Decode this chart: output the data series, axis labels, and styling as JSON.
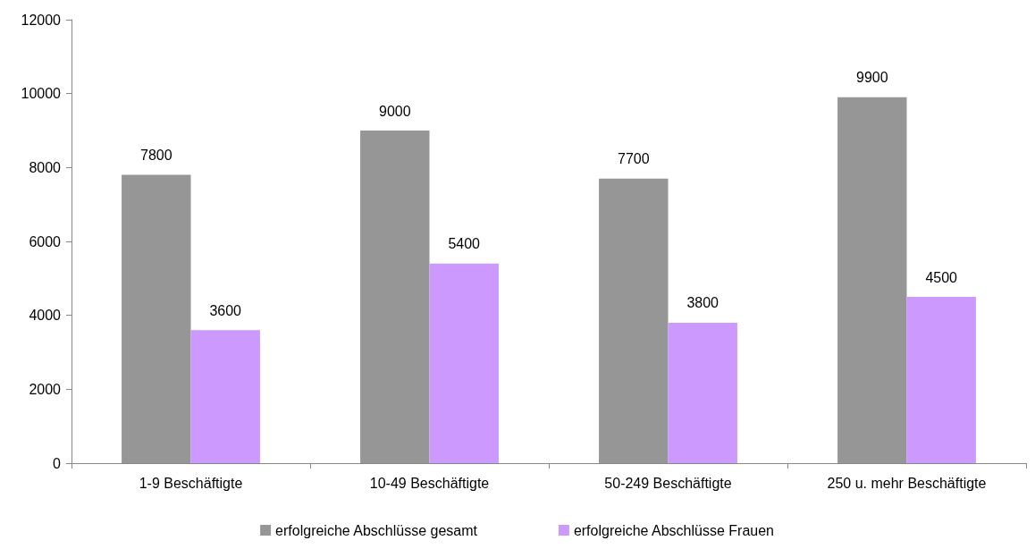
{
  "chart_data": {
    "type": "bar",
    "categories": [
      "1-9 Beschäftigte",
      "10-49 Beschäftigte",
      "50-249 Beschäftigte",
      "250 u. mehr Beschäftigte"
    ],
    "series": [
      {
        "name": "erfolgreiche Abschlüsse gesamt",
        "color": "#969696",
        "values": [
          7800,
          9000,
          7700,
          9900
        ]
      },
      {
        "name": "erfolgreiche Abschlüsse Frauen",
        "color": "#cc99ff",
        "values": [
          3600,
          5400,
          3800,
          4500
        ]
      }
    ],
    "ylim": [
      0,
      12000
    ],
    "yticks": [
      0,
      2000,
      4000,
      6000,
      8000,
      10000,
      12000
    ],
    "grid": false,
    "legend": "bottom",
    "data_labels": true
  }
}
